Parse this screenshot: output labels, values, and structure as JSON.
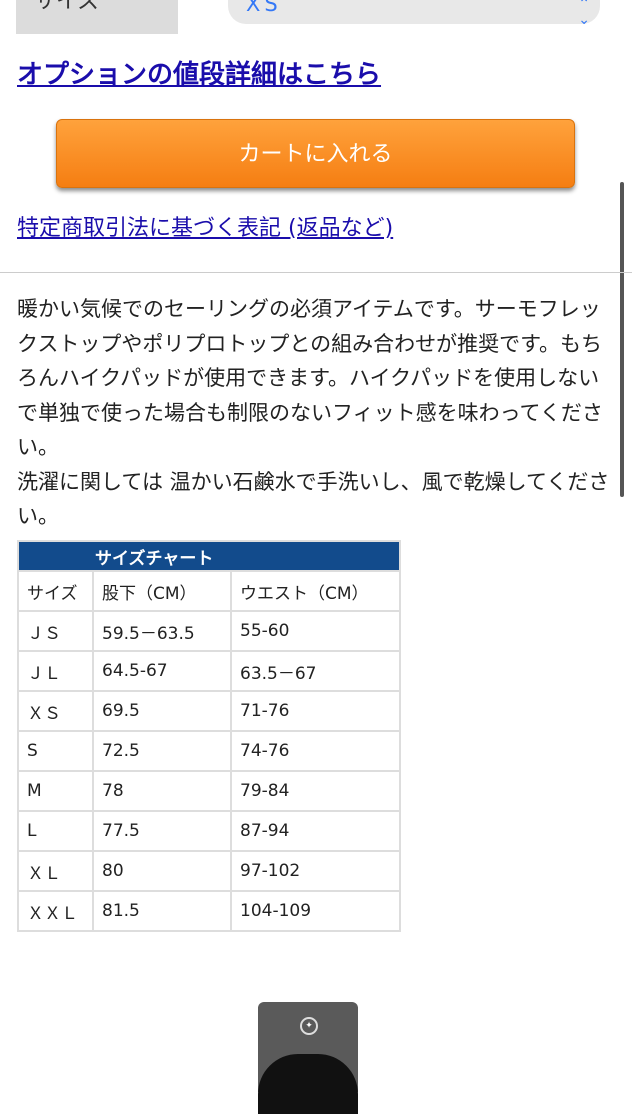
{
  "size_field": {
    "label": "サイズ",
    "selected": "XS"
  },
  "option_price_link": "オプションの値段詳細はこちら",
  "cart_button": "カートに入れる",
  "legal_link": "特定商取引法に基づく表記 (返品など)",
  "description": [
    "暖かい気候でのセーリングの必須アイテムです。サーモフレックストップやポリプロトップとの組み合わせが推奨です。もちろんハイクパッドが使用できます。ハイクパッドを使用しないで単独で使った場合も制限のないフィット感を味わってください。",
    "洗濯に関しては 温かい石鹸水で手洗いし、風で乾燥してください。"
  ],
  "size_chart": {
    "title": "サイズチャート",
    "headers": [
      "サイズ",
      "股下（CM）",
      "ウエスト（CM）"
    ],
    "rows": [
      [
        "ＪＳ",
        "59.5－63.5",
        "55-60"
      ],
      [
        "ＪＬ",
        "64.5-67",
        "63.5－67"
      ],
      [
        "ＸＳ",
        "69.5",
        "71-76"
      ],
      [
        "S",
        "72.5",
        "74-76"
      ],
      [
        "M",
        "78",
        "79-84"
      ],
      [
        "L",
        "77.5",
        "87-94"
      ],
      [
        "ＸＬ",
        "80",
        "97-102"
      ],
      [
        "ＸＸＬ",
        "81.5",
        "104-109"
      ]
    ]
  },
  "colors": {
    "link": "#1a0dab",
    "cart": "#f7901e",
    "chart_header": "#124b8c"
  }
}
